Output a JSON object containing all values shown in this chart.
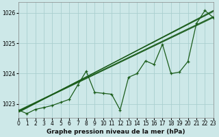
{
  "title": "Graphe pression niveau de la mer (hPa)",
  "bg_color": "#cde8e8",
  "grid_color": "#aacfcf",
  "line_color": "#1a5c1a",
  "xlim": [
    0,
    23
  ],
  "ylim": [
    1022.55,
    1026.35
  ],
  "yticks": [
    1023,
    1024,
    1025,
    1026
  ],
  "xticks": [
    0,
    1,
    2,
    3,
    4,
    5,
    6,
    7,
    8,
    9,
    10,
    11,
    12,
    13,
    14,
    15,
    16,
    17,
    18,
    19,
    20,
    21,
    22,
    23
  ],
  "main_data": [
    1022.8,
    1022.68,
    1022.82,
    1022.88,
    1022.95,
    1023.05,
    1023.15,
    1023.62,
    1024.08,
    1023.38,
    1023.35,
    1023.32,
    1022.8,
    1023.88,
    1024.0,
    1024.42,
    1024.3,
    1024.97,
    1024.0,
    1024.05,
    1024.4,
    1025.65,
    1026.08,
    1025.85
  ],
  "trend_lines": [
    {
      "x0": 0,
      "y0": 1022.78,
      "x1": 23,
      "y1": 1025.88
    },
    {
      "x0": 0,
      "y0": 1022.76,
      "x1": 23,
      "y1": 1025.85
    },
    {
      "x0": 0,
      "y0": 1022.74,
      "x1": 23,
      "y1": 1026.05
    },
    {
      "x0": 0,
      "y0": 1022.72,
      "x1": 23,
      "y1": 1026.08
    }
  ],
  "tick_fontsize": 5.5,
  "label_fontsize": 6.5,
  "figsize": [
    3.2,
    2.0
  ],
  "dpi": 100
}
